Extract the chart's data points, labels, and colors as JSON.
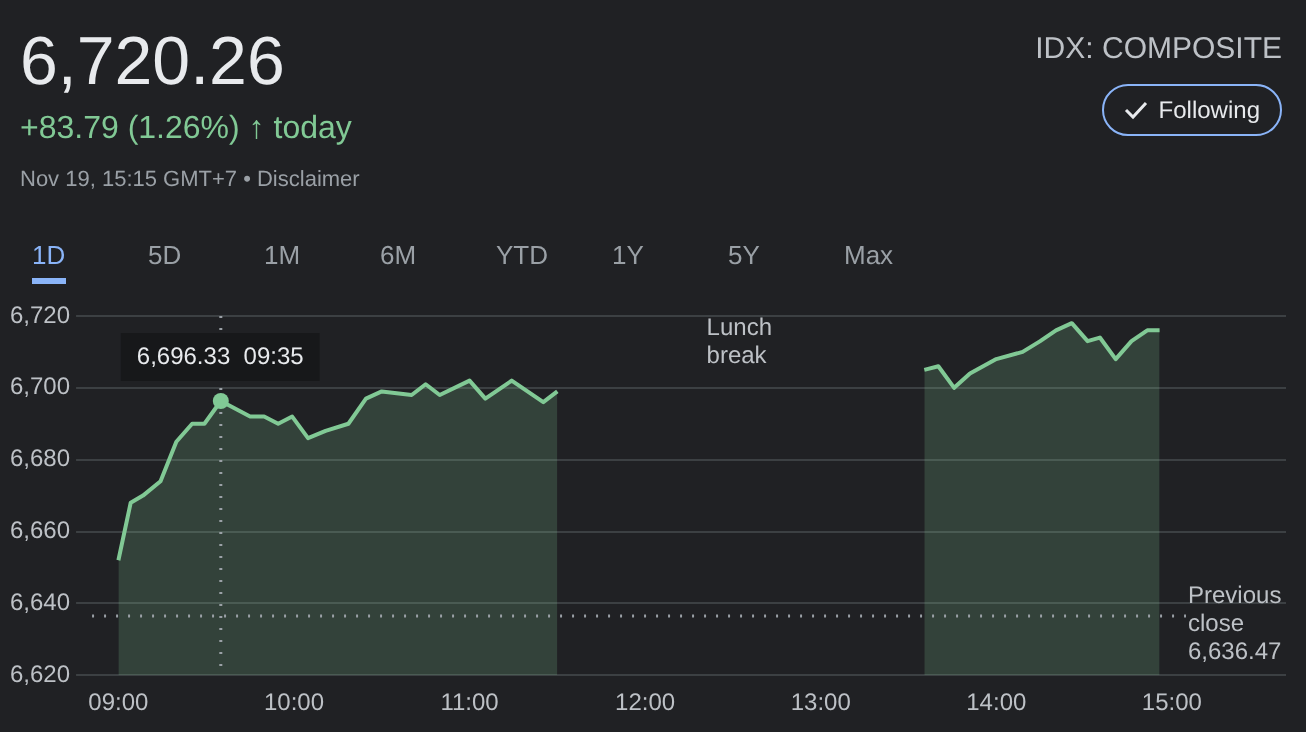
{
  "chart_data": {
    "type": "area",
    "title": "6,720.26",
    "subtitle": "+83.79 (1.26%) ↑ today",
    "annotations": [
      "Nov 19, 15:15 GMT+7 • Disclaimer",
      "IDX: COMPOSITE",
      "Following",
      "1D",
      "5D",
      "1M",
      "6M",
      "YTD",
      "1Y",
      "5Y",
      "Max",
      "Lunch break",
      {
        "text": "6,696.33  09:35",
        "x": 9.5833,
        "y": 6696.33
      }
    ],
    "series": [
      {
        "color": "#81c995",
        "x": [
          9.0,
          9.07,
          9.14,
          9.24,
          9.33,
          9.42,
          9.49,
          9.5833,
          9.75,
          9.83,
          9.91,
          9.99,
          10.08,
          10.18,
          10.31,
          10.41,
          10.5,
          10.67,
          10.75,
          10.83,
          11.0,
          11.09,
          11.24,
          11.42,
          11.5,
          12.5,
          13.59,
          13.67,
          13.76,
          13.85,
          14.0,
          14.15,
          14.25,
          14.34,
          14.43,
          14.52,
          14.59,
          14.68,
          14.77,
          14.86,
          14.93
        ],
        "values": [
          6652,
          6668,
          6670,
          6674,
          6685,
          6690,
          6690,
          6696.33,
          6692,
          6692,
          6690,
          6692,
          6686,
          6688,
          6690,
          6697,
          6699,
          6698,
          6701,
          6698,
          6702,
          6697,
          6702,
          6696,
          6699,
          null,
          6705,
          6706,
          6700,
          6704,
          6708,
          6710,
          6713,
          6716,
          6718,
          6713,
          6714,
          6708,
          6713,
          6716,
          6716
        ]
      }
    ],
    "xlim": [
      8.85,
      15.65
    ],
    "xticks": [
      {
        "value": 9,
        "label": "09:00"
      },
      {
        "value": 10,
        "label": "10:00"
      },
      {
        "value": 11,
        "label": "11:00"
      },
      {
        "value": 12,
        "label": "12:00"
      },
      {
        "value": 13,
        "label": "13:00"
      },
      {
        "value": 14,
        "label": "14:00"
      },
      {
        "value": 15,
        "label": "15:00"
      }
    ],
    "ylim": [
      6620,
      6720
    ],
    "yticks": [
      {
        "value": 6620,
        "label": "6,620"
      },
      {
        "value": 6640,
        "label": "6,640"
      },
      {
        "value": 6660,
        "label": "6,660"
      },
      {
        "value": 6680,
        "label": "6,680"
      },
      {
        "value": 6700,
        "label": "6,700"
      },
      {
        "value": 6720,
        "label": "6,720"
      }
    ],
    "grid": "y",
    "legend": false,
    "marker": "none",
    "line_style": "solid",
    "ref_lines": [
      {
        "axis": "y",
        "value": 6636.47,
        "label": "Previous close 6,636.47",
        "line_style": "dotted",
        "color": "#9aa0a6"
      },
      {
        "axis": "x",
        "value": 9.5833,
        "line_style": "dotted",
        "color": "#9aa0a6"
      }
    ]
  }
}
